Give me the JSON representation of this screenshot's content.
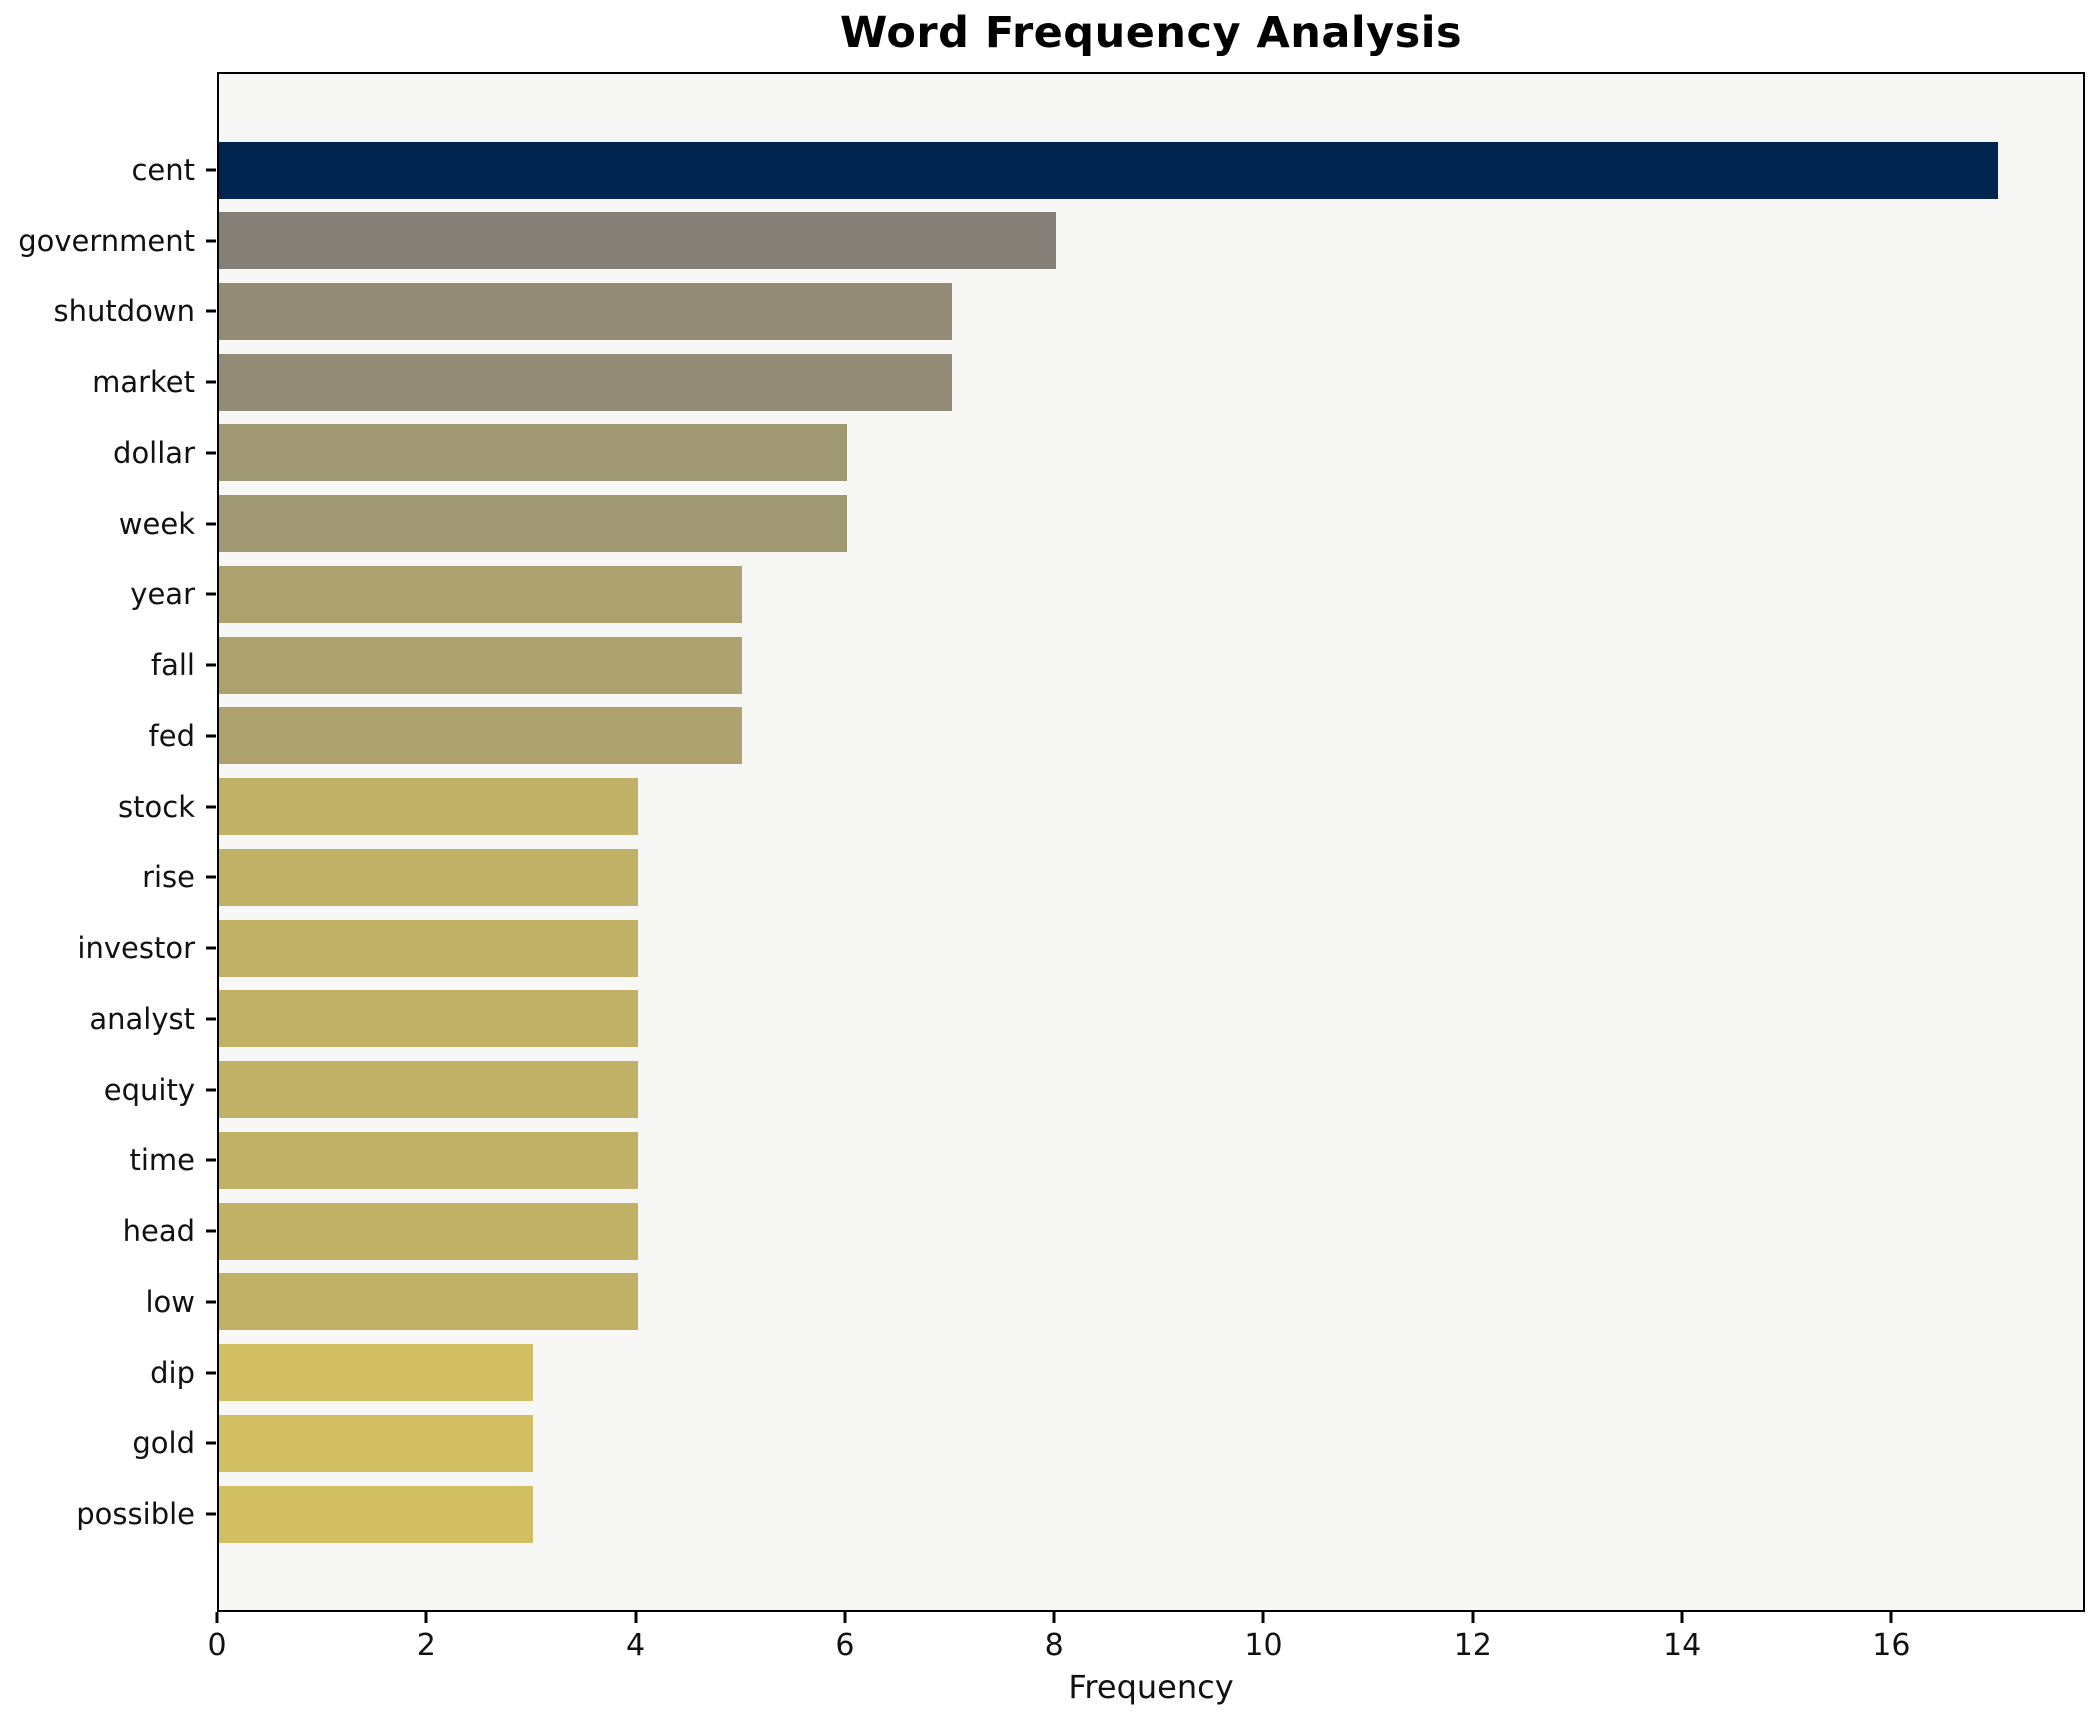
{
  "chart_data": {
    "type": "bar",
    "orientation": "horizontal",
    "title": "Word Frequency Analysis",
    "xlabel": "Frequency",
    "ylabel": "",
    "categories": [
      "cent",
      "government",
      "shutdown",
      "market",
      "dollar",
      "week",
      "year",
      "fall",
      "fed",
      "stock",
      "rise",
      "investor",
      "analyst",
      "equity",
      "time",
      "head",
      "low",
      "dip",
      "gold",
      "possible"
    ],
    "values": [
      17,
      8,
      7,
      7,
      6,
      6,
      5,
      5,
      5,
      4,
      4,
      4,
      4,
      4,
      4,
      4,
      4,
      3,
      3,
      3
    ],
    "bar_colors": [
      "#02254f",
      "#848078",
      "#938d77",
      "#938d77",
      "#a09872",
      "#a09872",
      "#ada26d",
      "#ada26d",
      "#ada26d",
      "#c0b167",
      "#c0b167",
      "#c0b167",
      "#c0b167",
      "#c0b167",
      "#c0b167",
      "#c0b167",
      "#c0b167",
      "#d3bf63",
      "#d3bf63",
      "#d3bf63"
    ],
    "x_ticks": [
      0,
      2,
      4,
      6,
      8,
      10,
      12,
      14,
      16
    ],
    "xlim": [
      0,
      17.85
    ],
    "grid": false,
    "legend": null,
    "colors": {
      "plot_background": "#f7f7f6",
      "figure_background": "#ffffff",
      "spine": "#000000",
      "text": "#111111",
      "title_text": "#000000"
    }
  }
}
